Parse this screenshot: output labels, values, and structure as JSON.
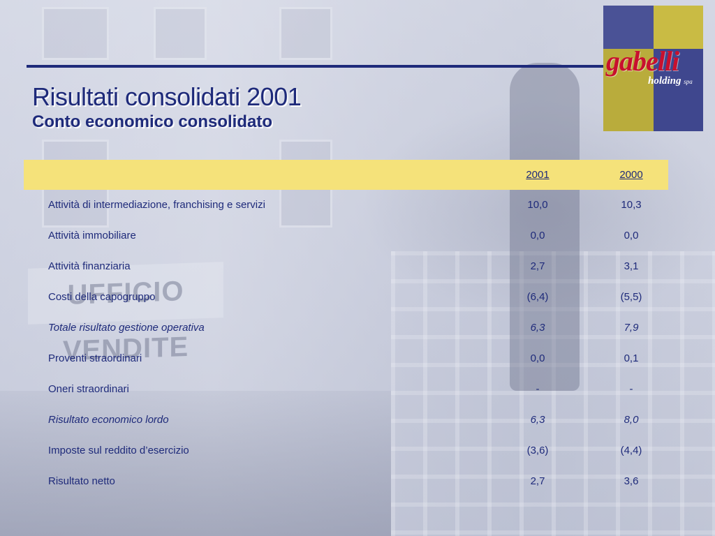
{
  "title": "Risultati consolidati 2001",
  "subtitle": "Conto economico consolidato",
  "logo": {
    "wordmark": "gabelli",
    "sub": "holding",
    "suffix": "spa"
  },
  "background_sign": "UFFICIO VENDITE",
  "table": {
    "columns": [
      "2001",
      "2000"
    ],
    "rows": [
      {
        "label": "Attività di intermediazione, franchising e servizi",
        "v2001": "10,0",
        "v2000": "10,3",
        "italic": false
      },
      {
        "label": "Attività immobiliare",
        "v2001": "0,0",
        "v2000": "0,0",
        "italic": false
      },
      {
        "label": "Attività finanziaria",
        "v2001": "2,7",
        "v2000": "3,1",
        "italic": false
      },
      {
        "label": "Costi della capogruppo",
        "v2001": "(6,4)",
        "v2000": "(5,5)",
        "italic": false
      },
      {
        "label": "Totale risultato gestione operativa",
        "v2001": "6,3",
        "v2000": "7,9",
        "italic": true
      },
      {
        "label": "Proventi straordinari",
        "v2001": "0,0",
        "v2000": "0,1",
        "italic": false
      },
      {
        "label": "Oneri straordinari",
        "v2001": "-",
        "v2000": "-",
        "italic": false
      },
      {
        "label": "Risultato economico lordo",
        "v2001": "6,3",
        "v2000": "8,0",
        "italic": true
      },
      {
        "label": "Imposte sul reddito d’esercizio",
        "v2001": "(3,6)",
        "v2000": "(4,4)",
        "italic": false
      },
      {
        "label": "Risultato netto",
        "v2001": "2,7",
        "v2000": "3,6",
        "italic": false
      }
    ]
  },
  "colors": {
    "text": "#1e2a7a",
    "header_band": "#f5e27a",
    "rule": "#1e2a7a",
    "logo_red": "#c8102e"
  }
}
